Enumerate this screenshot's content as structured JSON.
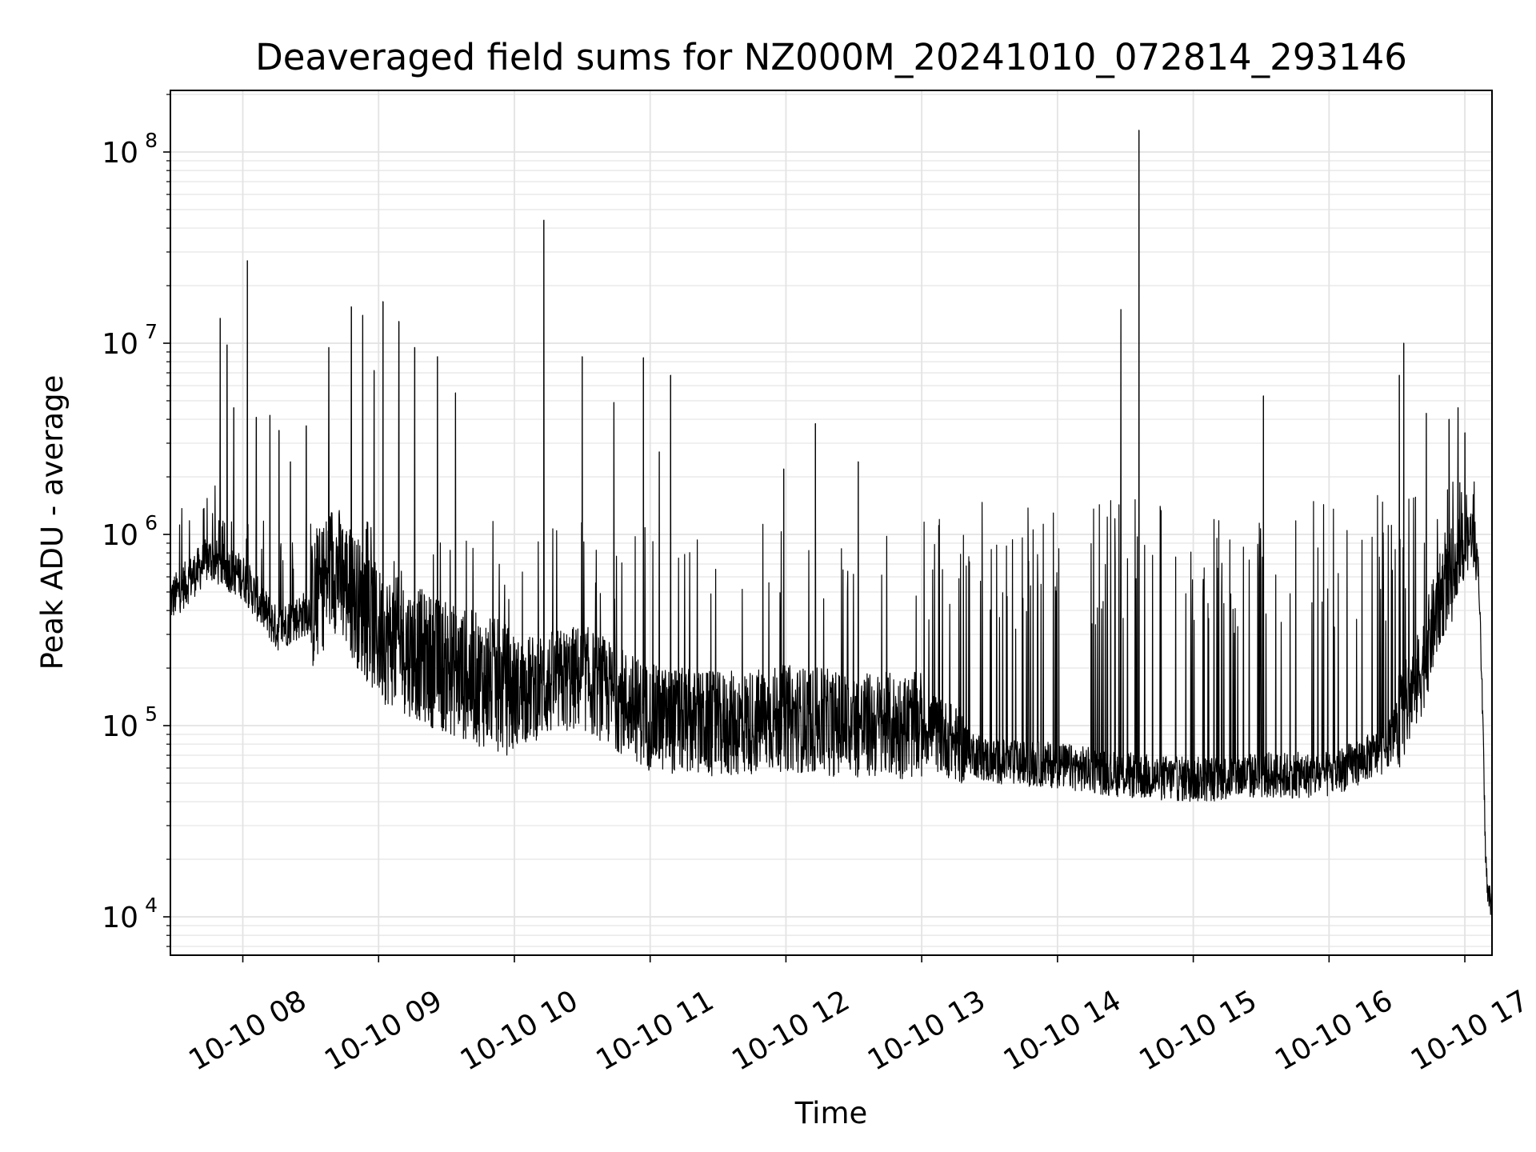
{
  "chart_data": {
    "type": "line",
    "title": "Deaveraged field sums for NZ000M_20241010_072814_293146",
    "xlabel": "Time",
    "ylabel": "Peak ADU - average",
    "yscale": "log",
    "xlim": [
      "2024-10-10 07:28",
      "2024-10-10 17:12"
    ],
    "ylim": [
      6300,
      210000000
    ],
    "grid": true,
    "legend": "none",
    "line_color": "#000000",
    "x_ticks": [
      {
        "t": "2024-10-10 08:00",
        "label": "10-10 08"
      },
      {
        "t": "2024-10-10 09:00",
        "label": "10-10 09"
      },
      {
        "t": "2024-10-10 10:00",
        "label": "10-10 10"
      },
      {
        "t": "2024-10-10 11:00",
        "label": "10-10 11"
      },
      {
        "t": "2024-10-10 12:00",
        "label": "10-10 12"
      },
      {
        "t": "2024-10-10 13:00",
        "label": "10-10 13"
      },
      {
        "t": "2024-10-10 14:00",
        "label": "10-10 14"
      },
      {
        "t": "2024-10-10 15:00",
        "label": "10-10 15"
      },
      {
        "t": "2024-10-10 16:00",
        "label": "10-10 16"
      },
      {
        "t": "2024-10-10 17:00",
        "label": "10-10 17"
      }
    ],
    "y_ticks": [
      {
        "value": 10000,
        "base": "10",
        "exp": "4"
      },
      {
        "value": 100000,
        "base": "10",
        "exp": "5"
      },
      {
        "value": 1000000,
        "base": "10",
        "exp": "6"
      },
      {
        "value": 10000000,
        "base": "10",
        "exp": "7"
      },
      {
        "value": 100000000,
        "base": "10",
        "exp": "8"
      }
    ],
    "baseline": [
      {
        "t": "2024-10-10 07:28",
        "v": 450000
      },
      {
        "t": "2024-10-10 07:45",
        "v": 750000
      },
      {
        "t": "2024-10-10 08:00",
        "v": 600000
      },
      {
        "t": "2024-10-10 08:15",
        "v": 320000
      },
      {
        "t": "2024-10-10 08:30",
        "v": 400000
      },
      {
        "t": "2024-10-10 08:40",
        "v": 700000
      },
      {
        "t": "2024-10-10 09:00",
        "v": 300000
      },
      {
        "t": "2024-10-10 09:30",
        "v": 200000
      },
      {
        "t": "2024-10-10 10:00",
        "v": 150000
      },
      {
        "t": "2024-10-10 10:30",
        "v": 180000
      },
      {
        "t": "2024-10-10 11:00",
        "v": 110000
      },
      {
        "t": "2024-10-10 11:30",
        "v": 100000
      },
      {
        "t": "2024-10-10 12:00",
        "v": 110000
      },
      {
        "t": "2024-10-10 12:30",
        "v": 100000
      },
      {
        "t": "2024-10-10 13:00",
        "v": 100000
      },
      {
        "t": "2024-10-10 13:30",
        "v": 65000
      },
      {
        "t": "2024-10-10 14:00",
        "v": 62000
      },
      {
        "t": "2024-10-10 14:30",
        "v": 55000
      },
      {
        "t": "2024-10-10 15:00",
        "v": 52000
      },
      {
        "t": "2024-10-10 15:30",
        "v": 55000
      },
      {
        "t": "2024-10-10 16:00",
        "v": 55000
      },
      {
        "t": "2024-10-10 16:25",
        "v": 75000
      },
      {
        "t": "2024-10-10 16:40",
        "v": 180000
      },
      {
        "t": "2024-10-10 16:50",
        "v": 500000
      },
      {
        "t": "2024-10-10 17:00",
        "v": 800000
      },
      {
        "t": "2024-10-10 17:03",
        "v": 1050000
      },
      {
        "t": "2024-10-10 17:06",
        "v": 700000
      },
      {
        "t": "2024-10-10 17:08",
        "v": 100000
      },
      {
        "t": "2024-10-10 17:09",
        "v": 25000
      },
      {
        "t": "2024-10-10 17:10",
        "v": 13000
      },
      {
        "t": "2024-10-10 17:12",
        "v": 12000
      }
    ],
    "spikes": [
      {
        "t": "2024-10-10 07:50",
        "v": 13500000
      },
      {
        "t": "2024-10-10 07:53",
        "v": 9800000
      },
      {
        "t": "2024-10-10 07:56",
        "v": 4600000
      },
      {
        "t": "2024-10-10 08:02",
        "v": 27000000
      },
      {
        "t": "2024-10-10 08:06",
        "v": 4100000
      },
      {
        "t": "2024-10-10 08:12",
        "v": 4200000
      },
      {
        "t": "2024-10-10 08:16",
        "v": 3500000
      },
      {
        "t": "2024-10-10 08:21",
        "v": 2400000
      },
      {
        "t": "2024-10-10 08:28",
        "v": 3700000
      },
      {
        "t": "2024-10-10 08:38",
        "v": 9500000
      },
      {
        "t": "2024-10-10 08:48",
        "v": 15500000
      },
      {
        "t": "2024-10-10 08:53",
        "v": 14000000
      },
      {
        "t": "2024-10-10 08:58",
        "v": 7200000
      },
      {
        "t": "2024-10-10 09:02",
        "v": 16500000
      },
      {
        "t": "2024-10-10 09:09",
        "v": 13000000
      },
      {
        "t": "2024-10-10 09:16",
        "v": 9500000
      },
      {
        "t": "2024-10-10 09:26",
        "v": 8500000
      },
      {
        "t": "2024-10-10 09:34",
        "v": 5500000
      },
      {
        "t": "2024-10-10 10:13",
        "v": 44000000
      },
      {
        "t": "2024-10-10 10:30",
        "v": 8500000
      },
      {
        "t": "2024-10-10 10:44",
        "v": 4900000
      },
      {
        "t": "2024-10-10 10:57",
        "v": 8400000
      },
      {
        "t": "2024-10-10 11:04",
        "v": 2700000
      },
      {
        "t": "2024-10-10 11:09",
        "v": 6800000
      },
      {
        "t": "2024-10-10 11:59",
        "v": 2200000
      },
      {
        "t": "2024-10-10 12:13",
        "v": 3800000
      },
      {
        "t": "2024-10-10 12:32",
        "v": 2400000
      },
      {
        "t": "2024-10-10 14:28",
        "v": 15000000
      },
      {
        "t": "2024-10-10 14:36",
        "v": 130000000
      },
      {
        "t": "2024-10-10 15:31",
        "v": 5300000
      },
      {
        "t": "2024-10-10 16:31",
        "v": 6800000
      },
      {
        "t": "2024-10-10 16:33",
        "v": 10000000
      },
      {
        "t": "2024-10-10 16:43",
        "v": 4300000
      },
      {
        "t": "2024-10-10 16:53",
        "v": 4000000
      },
      {
        "t": "2024-10-10 16:57",
        "v": 4600000
      },
      {
        "t": "2024-10-10 17:00",
        "v": 3400000
      }
    ]
  }
}
